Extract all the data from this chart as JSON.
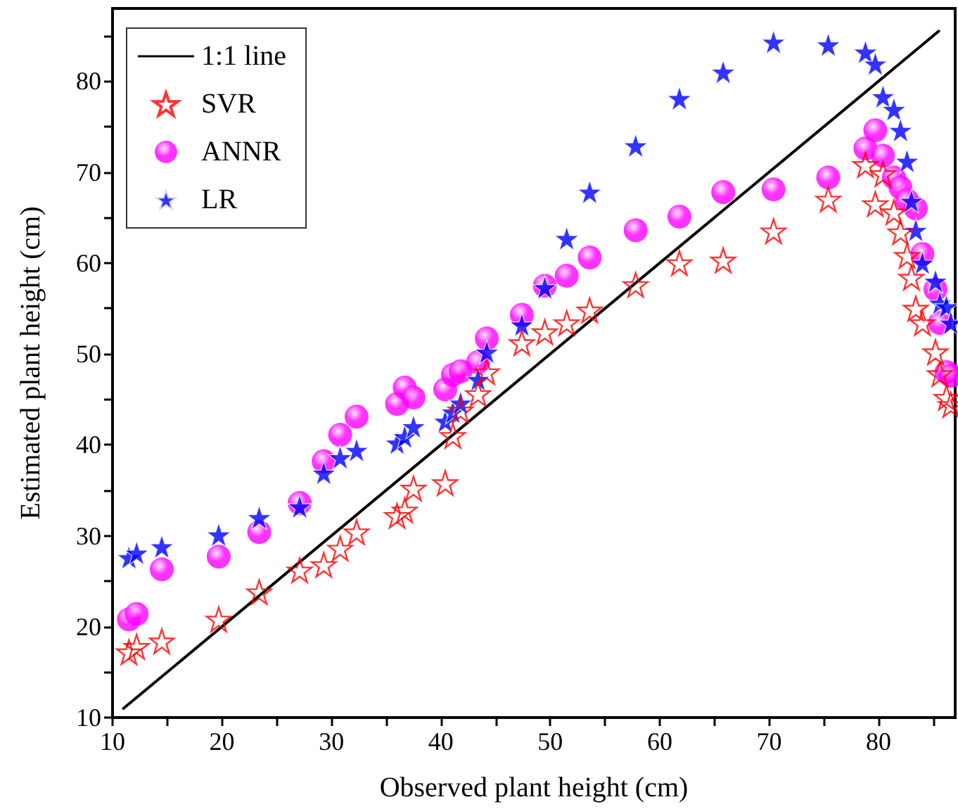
{
  "chart_data": {
    "type": "scatter",
    "xlabel": "Observed plant height (cm)",
    "ylabel": "Estimated plant height (cm)",
    "xlim": [
      10,
      87
    ],
    "ylim": [
      10,
      88
    ],
    "xticks": [
      10,
      20,
      30,
      40,
      50,
      60,
      70,
      80
    ],
    "yticks": [
      10,
      20,
      30,
      40,
      50,
      60,
      70,
      80
    ],
    "grid": false,
    "legend": "top left",
    "x": [
      11.5,
      12.2,
      14.5,
      19.7,
      23.4,
      27.1,
      29.3,
      30.8,
      32.3,
      36.0,
      36.7,
      37.5,
      40.4,
      41.1,
      41.8,
      43.4,
      44.2,
      47.4,
      49.5,
      51.5,
      53.6,
      57.8,
      61.8,
      65.8,
      70.4,
      75.4,
      78.8,
      79.7,
      80.4,
      81.4,
      82.0,
      82.6,
      83.0,
      83.4,
      84.0,
      85.2,
      85.6,
      86.2,
      86.6
    ],
    "series": [
      {
        "name": "1:1 line",
        "type": "line",
        "color": "#000000",
        "marker": "none",
        "line_style": "solid",
        "x": [
          11,
          85.5
        ],
        "values": [
          11,
          85.5
        ]
      },
      {
        "name": "SVR",
        "color": "#ff0000",
        "marker": "star",
        "values": [
          17.2,
          17.8,
          18.4,
          20.8,
          23.8,
          26.2,
          26.8,
          28.6,
          30.4,
          32.2,
          32.8,
          35.2,
          35.8,
          41.0,
          43.8,
          45.6,
          48.0,
          51.2,
          52.4,
          53.4,
          54.8,
          57.6,
          60.0,
          60.3,
          63.5,
          67.0,
          70.8,
          66.5,
          69.8,
          65.6,
          63.4,
          60.8,
          58.4,
          55.0,
          53.4,
          50.2,
          47.8,
          45.2,
          44.4
        ]
      },
      {
        "name": "ANNR",
        "color": "#ff00ff",
        "marker": "circle",
        "values": [
          20.8,
          21.4,
          26.3,
          27.7,
          30.4,
          33.6,
          38.2,
          41.1,
          43.1,
          44.5,
          46.3,
          45.2,
          46.1,
          47.7,
          48.1,
          49.1,
          51.7,
          54.3,
          57.5,
          58.6,
          60.6,
          63.6,
          65.1,
          67.8,
          68.1,
          69.4,
          72.6,
          74.6,
          71.8,
          69.4,
          68.3,
          66.9,
          null,
          66.0,
          61.0,
          57.1,
          53.4,
          48.0,
          47.6
        ]
      },
      {
        "name": "LR",
        "color": "#0000ff",
        "marker": "star",
        "values": [
          27.6,
          28.1,
          28.8,
          30.1,
          32.0,
          33.2,
          36.9,
          38.6,
          39.4,
          40.2,
          40.9,
          42.0,
          42.6,
          43.6,
          44.6,
          47.2,
          50.2,
          53.2,
          57.3,
          62.7,
          67.8,
          72.9,
          78.1,
          81.0,
          84.3,
          84.0,
          83.2,
          81.9,
          78.3,
          76.9,
          74.6,
          71.2,
          66.8,
          63.6,
          60.0,
          58.0,
          55.6,
          55.2,
          53.4
        ]
      }
    ]
  }
}
